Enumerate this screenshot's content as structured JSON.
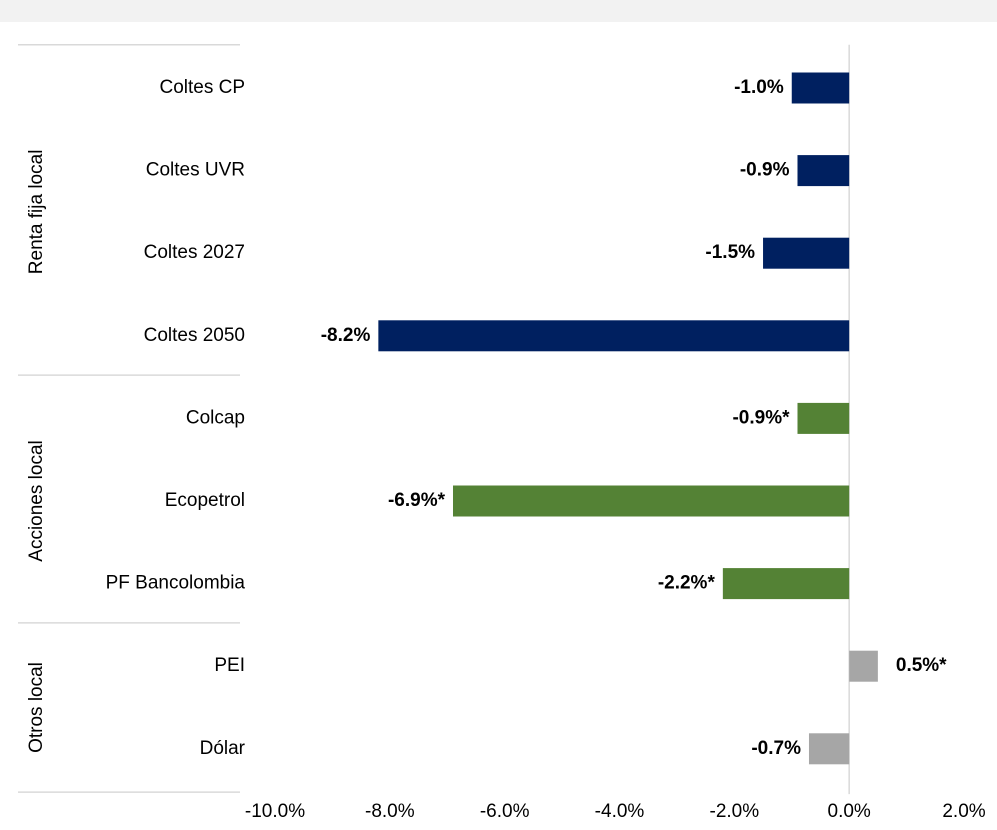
{
  "chart_data": {
    "type": "bar",
    "orientation": "horizontal",
    "series": [
      {
        "name": "Renta fija local",
        "color": "#002060",
        "categories": [
          "Coltes CP",
          "Coltes UVR",
          "Coltes 2027",
          "Coltes 2050"
        ],
        "values": [
          -1.0,
          -0.9,
          -1.5,
          -8.2
        ],
        "value_labels": [
          "-1.0%",
          "-0.9%",
          "-1.5%",
          "-8.2%"
        ]
      },
      {
        "name": "Acciones local",
        "color": "#548235",
        "categories": [
          "Colcap",
          "Ecopetrol",
          "PF Bancolombia"
        ],
        "values": [
          -0.9,
          -6.9,
          -2.2
        ],
        "value_labels": [
          "-0.9%*",
          "-6.9%*",
          "-2.2%*"
        ]
      },
      {
        "name": "Otros local",
        "color": "#a6a6a6",
        "categories": [
          "PEI",
          "Dólar"
        ],
        "values": [
          0.5,
          -0.7
        ],
        "value_labels": [
          "0.5%*",
          "-0.7%"
        ]
      }
    ],
    "xlim": [
      -10,
      2
    ],
    "xticks": [
      {
        "value": -10,
        "label": "-10.0%"
      },
      {
        "value": -8,
        "label": "-8.0%"
      },
      {
        "value": -6,
        "label": "-6.0%"
      },
      {
        "value": -4,
        "label": "-4.0%"
      },
      {
        "value": -2,
        "label": "-2.0%"
      },
      {
        "value": 0,
        "label": "0.0%"
      },
      {
        "value": 2,
        "label": "2.0%"
      }
    ]
  }
}
